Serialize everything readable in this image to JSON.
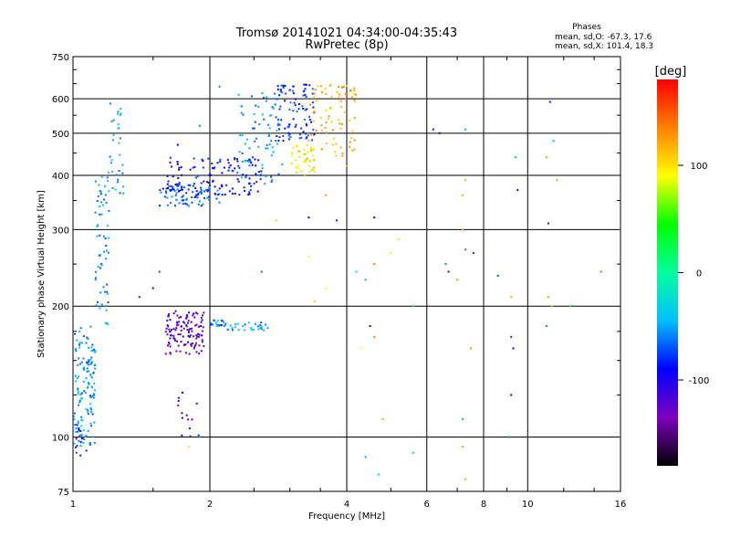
{
  "chart_data": {
    "type": "scatter",
    "title": "Tromsø 20141021 04:34:00-04:35:43",
    "subtitle": "RwPretec (8p)",
    "xlabel": "Frequency [MHz]",
    "ylabel": "Stationary phase Virtual Height [km]",
    "xscale": "log",
    "yscale": "log",
    "xlim": [
      1,
      16
    ],
    "ylim": [
      75,
      750
    ],
    "x_ticks": [
      1,
      2,
      4,
      6,
      8,
      10,
      16
    ],
    "y_ticks": [
      75,
      100,
      200,
      300,
      400,
      500,
      600,
      750
    ],
    "grid": true,
    "stats": {
      "heading": "Phases",
      "line1": "mean, sd,O: -67.3, 17.6",
      "line2": "mean, sd,X: 101.4, 18.3"
    },
    "colorbar": {
      "label": "[deg]",
      "range": [
        -180,
        180
      ],
      "ticks": [
        100,
        0,
        -100
      ],
      "colors": [
        "#000000",
        "#7f00bf",
        "#0000ff",
        "#00bfff",
        "#00ff9f",
        "#00ff00",
        "#ffff00",
        "#ff8000",
        "#ff0000"
      ]
    },
    "clusters": [
      {
        "x": [
          1.0,
          1.12
        ],
        "y": [
          95,
          180
        ],
        "phase": -55,
        "n": 140
      },
      {
        "x": [
          1.12,
          1.2
        ],
        "y": [
          180,
          400
        ],
        "phase": -55,
        "n": 60
      },
      {
        "x": [
          1.18,
          1.3
        ],
        "y": [
          360,
          430
        ],
        "phase": -60,
        "n": 15
      },
      {
        "x": [
          1.2,
          1.28
        ],
        "y": [
          430,
          600
        ],
        "phase": -50,
        "n": 18
      },
      {
        "x": [
          1.0,
          1.08
        ],
        "y": [
          90,
          110
        ],
        "phase": -85,
        "n": 12
      },
      {
        "x": [
          1.6,
          1.95
        ],
        "y": [
          155,
          195
        ],
        "phase": -120,
        "n": 120
      },
      {
        "x": [
          2.0,
          2.15
        ],
        "y": [
          178,
          186
        ],
        "phase": -60,
        "n": 18
      },
      {
        "x": [
          2.15,
          2.7
        ],
        "y": [
          176,
          184
        ],
        "phase": -50,
        "n": 30
      },
      {
        "x": [
          1.7,
          1.9
        ],
        "y": [
          100,
          130
        ],
        "phase": -110,
        "n": 14
      },
      {
        "x": [
          1.55,
          2.1
        ],
        "y": [
          340,
          380
        ],
        "phase": -70,
        "n": 80
      },
      {
        "x": [
          1.6,
          2.6
        ],
        "y": [
          360,
          440
        ],
        "phase": -90,
        "n": 120
      },
      {
        "x": [
          2.3,
          2.9
        ],
        "y": [
          380,
          620
        ],
        "phase": -55,
        "n": 80
      },
      {
        "x": [
          2.8,
          3.4
        ],
        "y": [
          480,
          650
        ],
        "phase": -80,
        "n": 90
      },
      {
        "x": [
          3.0,
          3.4
        ],
        "y": [
          400,
          470
        ],
        "phase": 100,
        "n": 45
      },
      {
        "x": [
          3.3,
          4.2
        ],
        "y": [
          440,
          650
        ],
        "phase": 120,
        "n": 80
      }
    ],
    "scattered_points": [
      [
        2.8,
        315,
        110
      ],
      [
        3.3,
        320,
        -90
      ],
      [
        3.6,
        360,
        120
      ],
      [
        3.8,
        315,
        -110
      ],
      [
        4.0,
        420,
        120
      ],
      [
        4.6,
        320,
        -90
      ],
      [
        5.0,
        265,
        80
      ],
      [
        5.2,
        285,
        100
      ],
      [
        4.2,
        240,
        10
      ],
      [
        4.4,
        230,
        -50
      ],
      [
        4.6,
        250,
        140
      ],
      [
        3.6,
        220,
        90
      ],
      [
        3.4,
        205,
        110
      ],
      [
        5.6,
        200,
        30
      ],
      [
        4.5,
        180,
        -100
      ],
      [
        4.6,
        170,
        140
      ],
      [
        4.3,
        160,
        90
      ],
      [
        4.8,
        110,
        60
      ],
      [
        4.4,
        90,
        -50
      ],
      [
        4.7,
        82,
        -40
      ],
      [
        5.6,
        92,
        -40
      ],
      [
        6.6,
        250,
        -60
      ],
      [
        6.7,
        240,
        -110
      ],
      [
        7.0,
        230,
        130
      ],
      [
        7.3,
        270,
        -60
      ],
      [
        7.6,
        265,
        -80
      ],
      [
        7.3,
        510,
        -50
      ],
      [
        7.2,
        300,
        120
      ],
      [
        7.2,
        360,
        120
      ],
      [
        7.3,
        390,
        120
      ],
      [
        7.5,
        160,
        130
      ],
      [
        7.2,
        110,
        -50
      ],
      [
        7.2,
        95,
        120
      ],
      [
        7.3,
        80,
        120
      ],
      [
        8.6,
        235,
        -70
      ],
      [
        9.2,
        210,
        120
      ],
      [
        9.2,
        170,
        -80
      ],
      [
        9.3,
        160,
        -90
      ],
      [
        9.2,
        125,
        -100
      ],
      [
        9.1,
        100,
        -60
      ],
      [
        11.2,
        590,
        -110
      ],
      [
        11.4,
        480,
        -50
      ],
      [
        11.0,
        440,
        130
      ],
      [
        11.1,
        310,
        -120
      ],
      [
        11.3,
        200,
        120
      ],
      [
        11.1,
        210,
        130
      ],
      [
        11.0,
        180,
        -60
      ],
      [
        12.4,
        200,
        40
      ],
      [
        14.5,
        240,
        150
      ],
      [
        9.4,
        440,
        -50
      ],
      [
        9.5,
        370,
        -90
      ],
      [
        11.6,
        390,
        120
      ],
      [
        6.2,
        510,
        -100
      ],
      [
        6.4,
        500,
        -90
      ],
      [
        2.1,
        640,
        -60
      ],
      [
        1.7,
        470,
        -90
      ],
      [
        1.9,
        520,
        -60
      ],
      [
        1.4,
        210,
        -120
      ],
      [
        1.5,
        220,
        -100
      ],
      [
        1.55,
        240,
        -70
      ],
      [
        1.8,
        95,
        100
      ],
      [
        1.9,
        100,
        -50
      ],
      [
        2.6,
        240,
        -60
      ],
      [
        3.3,
        260,
        90
      ]
    ]
  }
}
